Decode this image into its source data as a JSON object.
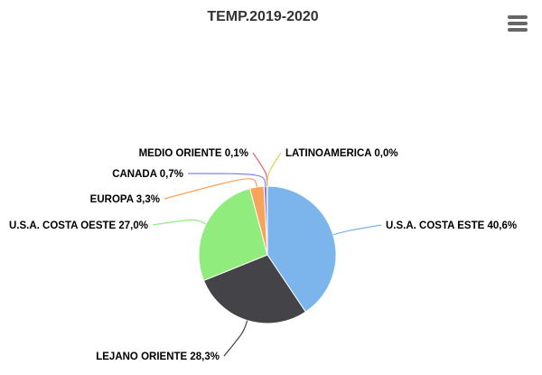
{
  "menu_icon": "hamburger-menu-icon",
  "chart_data": {
    "type": "pie",
    "title": "TEMP.2019-2020",
    "slices": [
      {
        "name": "U.S.A. COSTA ESTE",
        "value": 40.6,
        "label": "U.S.A. COSTA ESTE 40,6%",
        "color": "#7cb5ec"
      },
      {
        "name": "LEJANO ORIENTE",
        "value": 28.3,
        "label": "LEJANO ORIENTE 28,3%",
        "color": "#434348"
      },
      {
        "name": "U.S.A. COSTA OESTE",
        "value": 27.0,
        "label": "U.S.A. COSTA OESTE 27,0%",
        "color": "#90ed7d"
      },
      {
        "name": "EUROPA",
        "value": 3.3,
        "label": "EUROPA 3,3%",
        "color": "#f7a35c"
      },
      {
        "name": "CANADA",
        "value": 0.7,
        "label": "CANADA 0,7%",
        "color": "#8085e9"
      },
      {
        "name": "MEDIO ORIENTE",
        "value": 0.1,
        "label": "MEDIO ORIENTE 0,1%",
        "color": "#f15c80"
      },
      {
        "name": "LATINOAMERICA",
        "value": 0.0,
        "label": "LATINOAMERICA 0,0%",
        "color": "#e4d354"
      }
    ]
  }
}
